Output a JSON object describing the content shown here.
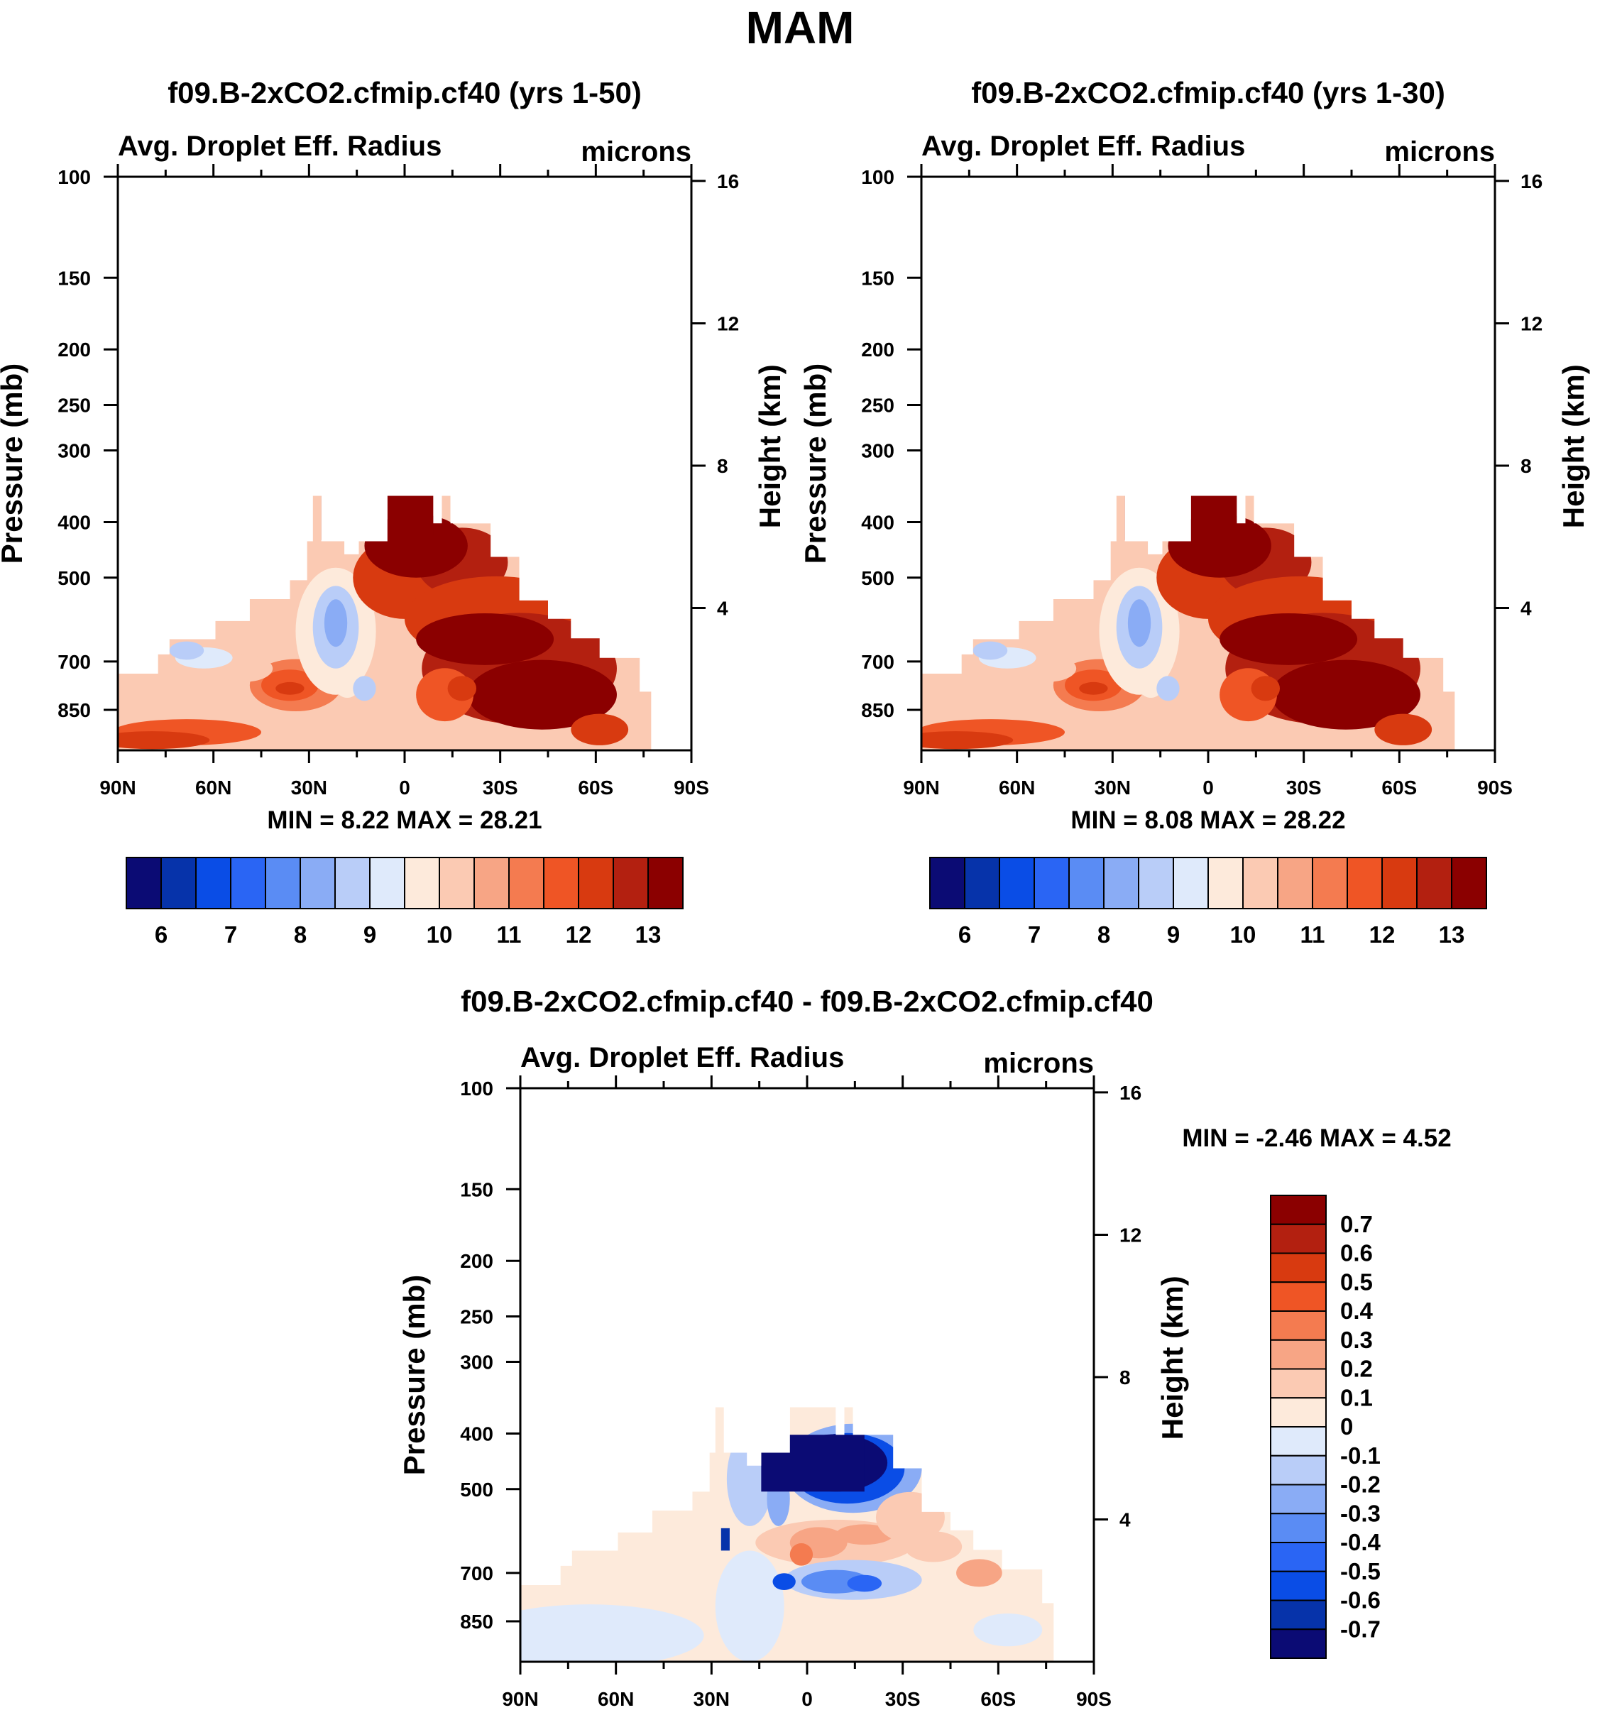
{
  "page": {
    "title": "MAM"
  },
  "panels": [
    {
      "id": "top-left",
      "title": "f09.B-2xCO2.cfmip.cf40 (yrs 1-50)",
      "left_label": "Avg. Droplet Eff. Radius",
      "right_label": "microns",
      "min_max": "MIN =   8.22  MAX =  28.21",
      "colorbar_type": "sequential"
    },
    {
      "id": "top-right",
      "title": "f09.B-2xCO2.cfmip.cf40 (yrs 1-30)",
      "left_label": "Avg. Droplet Eff. Radius",
      "right_label": "microns",
      "min_max": "MIN =   8.08  MAX =  28.22",
      "colorbar_type": "sequential"
    },
    {
      "id": "bottom",
      "title": "f09.B-2xCO2.cfmip.cf40 - f09.B-2xCO2.cfmip.cf40",
      "left_label": "Avg. Droplet Eff. Radius",
      "right_label": "microns",
      "min_max": "MIN =  -2.46  MAX =   4.52",
      "colorbar_type": "difference"
    }
  ],
  "colorbar_sequential": {
    "colors": [
      "#0b0b74",
      "#0633aa",
      "#0a4de6",
      "#2a65f4",
      "#5a8cf4",
      "#8aacf5",
      "#b9cdf8",
      "#dfeafb",
      "#fdeadb",
      "#fbcab3",
      "#f7a585",
      "#f47b50",
      "#ef5525",
      "#d83a10",
      "#b32010",
      "#8b0000"
    ],
    "labels": [
      "6",
      "7",
      "8",
      "9",
      "10",
      "11",
      "12",
      "13"
    ]
  },
  "colorbar_difference": {
    "colors": [
      "#0b0b74",
      "#0633aa",
      "#0a4de6",
      "#2a65f4",
      "#5a8cf4",
      "#8aacf5",
      "#b9cdf8",
      "#dfeafb",
      "#fdeadb",
      "#fbcab3",
      "#f7a585",
      "#f47b50",
      "#ef5525",
      "#d83a10",
      "#b32010",
      "#8b0000"
    ],
    "labels": [
      "-0.7",
      "-0.6",
      "-0.5",
      "-0.4",
      "-0.3",
      "-0.2",
      "-0.1",
      "0",
      "0.1",
      "0.2",
      "0.3",
      "0.4",
      "0.5",
      "0.6",
      "0.7"
    ]
  },
  "chart_data": [
    {
      "type": "heatmap",
      "title": "f09.B-2xCO2.cfmip.cf40 (yrs 1-50)",
      "variable": "Avg. Droplet Eff. Radius",
      "units": "microns",
      "xlabel": "",
      "ylabel": "Pressure (mb)",
      "y2label": "Height (km)",
      "x_ticks": [
        "90N",
        "60N",
        "30N",
        "0",
        "30S",
        "60S",
        "90S"
      ],
      "y_ticks": [
        100,
        150,
        200,
        250,
        300,
        400,
        500,
        700,
        850
      ],
      "y2_ticks": [
        16,
        12,
        8,
        4
      ],
      "ylim": [
        1000,
        100
      ],
      "levels": [
        6,
        6.5,
        7,
        7.5,
        8,
        8.5,
        9,
        9.5,
        10,
        10.5,
        11,
        11.5,
        12,
        12.5,
        13
      ],
      "min": 8.22,
      "max": 28.21
    },
    {
      "type": "heatmap",
      "title": "f09.B-2xCO2.cfmip.cf40 (yrs 1-30)",
      "variable": "Avg. Droplet Eff. Radius",
      "units": "microns",
      "xlabel": "",
      "ylabel": "Pressure (mb)",
      "y2label": "Height (km)",
      "x_ticks": [
        "90N",
        "60N",
        "30N",
        "0",
        "30S",
        "60S",
        "90S"
      ],
      "y_ticks": [
        100,
        150,
        200,
        250,
        300,
        400,
        500,
        700,
        850
      ],
      "y2_ticks": [
        16,
        12,
        8,
        4
      ],
      "ylim": [
        1000,
        100
      ],
      "levels": [
        6,
        6.5,
        7,
        7.5,
        8,
        8.5,
        9,
        9.5,
        10,
        10.5,
        11,
        11.5,
        12,
        12.5,
        13
      ],
      "min": 8.08,
      "max": 28.22
    },
    {
      "type": "heatmap",
      "title": "f09.B-2xCO2.cfmip.cf40 - f09.B-2xCO2.cfmip.cf40",
      "variable": "Avg. Droplet Eff. Radius",
      "units": "microns",
      "xlabel": "",
      "ylabel": "Pressure (mb)",
      "y2label": "Height (km)",
      "x_ticks": [
        "90N",
        "60N",
        "30N",
        "0",
        "30S",
        "60S",
        "90S"
      ],
      "y_ticks": [
        100,
        150,
        200,
        250,
        300,
        400,
        500,
        700,
        850
      ],
      "y2_ticks": [
        16,
        12,
        8,
        4
      ],
      "ylim": [
        1000,
        100
      ],
      "levels": [
        -0.7,
        -0.6,
        -0.5,
        -0.4,
        -0.3,
        -0.2,
        -0.1,
        0,
        0.1,
        0.2,
        0.3,
        0.4,
        0.5,
        0.6,
        0.7
      ],
      "min": -2.46,
      "max": 4.52
    }
  ]
}
